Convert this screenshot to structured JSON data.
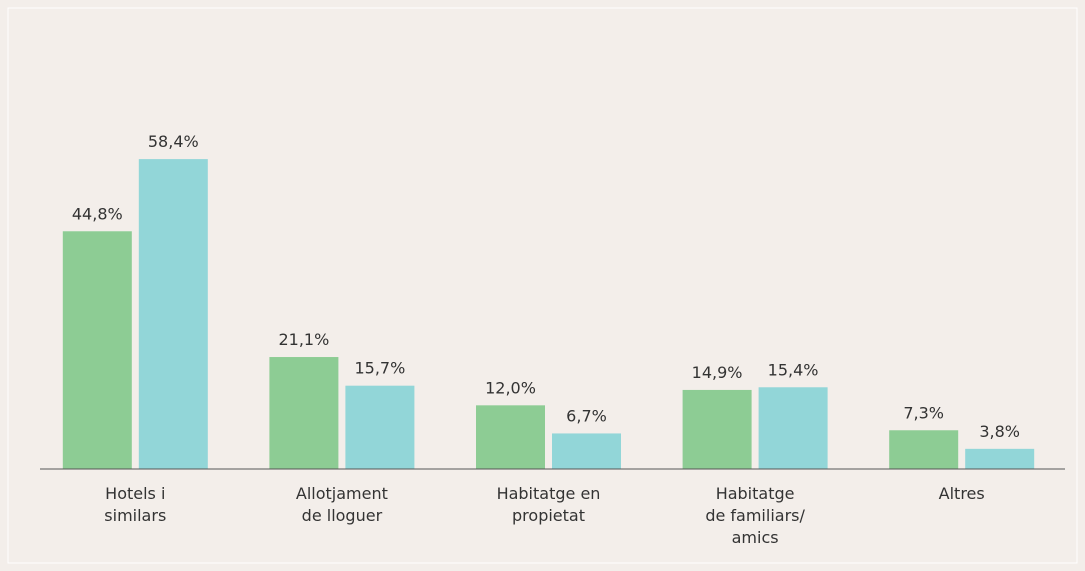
{
  "chart_data": {
    "type": "bar",
    "categories": [
      "Hotels i\nsimilars",
      "Allotjament\nde lloguer",
      "Habitatge en\npropietat",
      "Habitatge\nde familiars/\namics",
      "Altres"
    ],
    "series": [
      {
        "color": "#8dcc94",
        "values": [
          44.8,
          21.1,
          12.0,
          14.9,
          7.3
        ],
        "value_labels": [
          "44,8%",
          "21,1%",
          "12,0%",
          "14,9%",
          "7,3%"
        ]
      },
      {
        "color": "#92d6d8",
        "values": [
          58.4,
          15.7,
          6.7,
          15.4,
          3.8
        ],
        "value_labels": [
          "58,4%",
          "15,7%",
          "6,7%",
          "15,4%",
          "3,8%"
        ]
      }
    ],
    "ylim": [
      0,
      62
    ]
  }
}
